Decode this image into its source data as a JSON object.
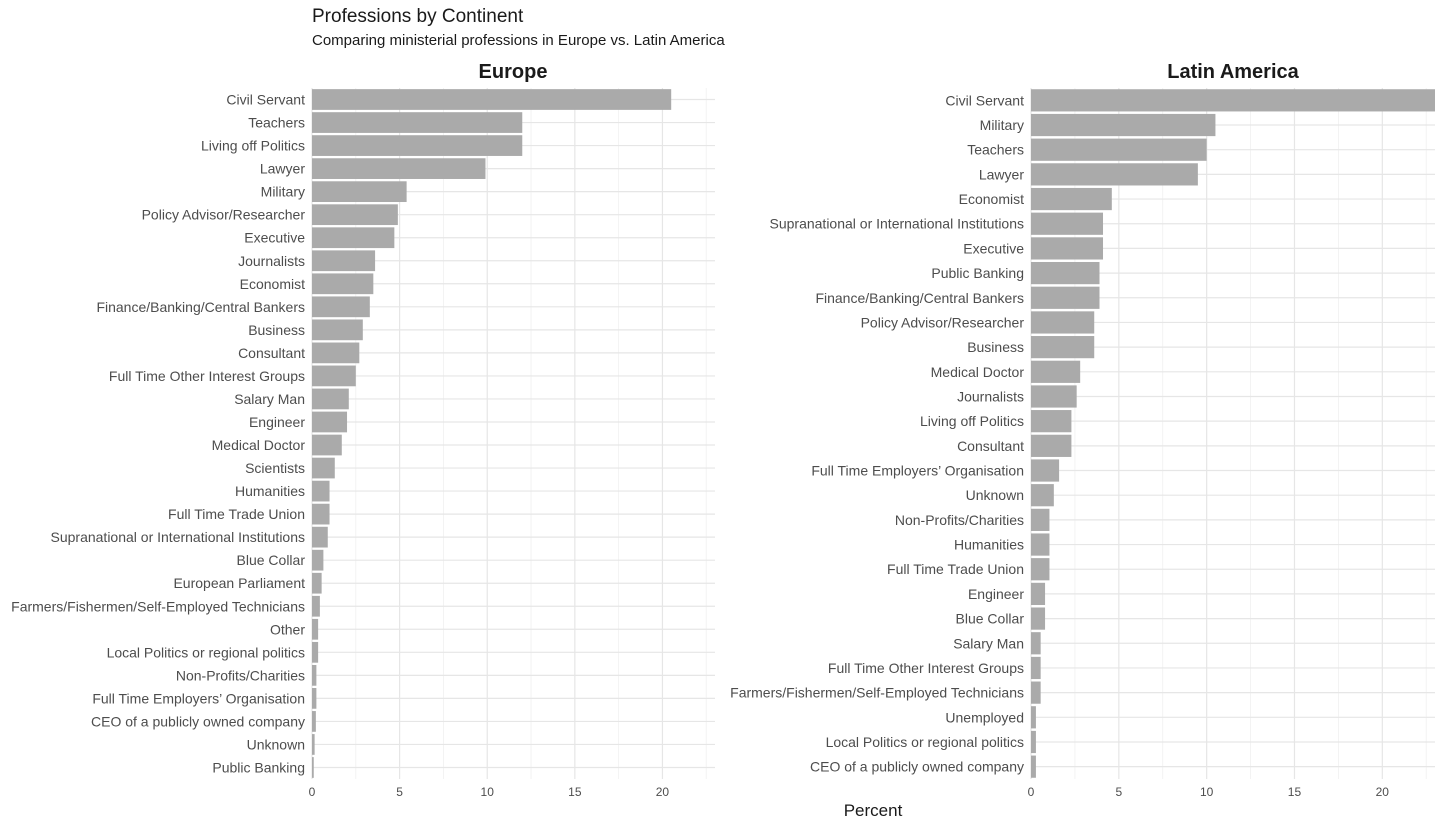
{
  "chart_data": {
    "type": "bar",
    "orientation": "horizontal",
    "title": "Professions by Continent",
    "subtitle": "Comparing ministerial professions in Europe vs. Latin America",
    "xlabel": "Percent",
    "ylabel": "",
    "xlim": [
      0,
      23
    ],
    "xticks": [
      0,
      5,
      10,
      15,
      20
    ],
    "grid": true,
    "bar_color": "#aaaaaa",
    "panels": [
      {
        "name": "Europe",
        "categories": [
          "Civil Servant",
          "Teachers",
          "Living off Politics",
          "Lawyer",
          "Military",
          "Policy Advisor/Researcher",
          "Executive",
          "Journalists",
          "Economist",
          "Finance/Banking/Central Bankers",
          "Business",
          "Consultant",
          "Full Time Other Interest Groups",
          "Salary Man",
          "Engineer",
          "Medical Doctor",
          "Scientists",
          "Humanities",
          "Full Time Trade Union",
          "Supranational or International Institutions",
          "Blue Collar",
          "European Parliament",
          "Farmers/Fishermen/Self-Employed Technicians",
          "Other",
          "Local Politics or regional politics",
          "Non-Profits/Charities",
          "Full Time Employers’ Organisation",
          "CEO of a publicly owned company",
          "Unknown",
          "Public Banking"
        ],
        "values": [
          20.5,
          12.0,
          12.0,
          9.9,
          5.4,
          4.9,
          4.7,
          3.6,
          3.5,
          3.3,
          2.9,
          2.7,
          2.5,
          2.1,
          2.0,
          1.7,
          1.3,
          1.0,
          1.0,
          0.9,
          0.65,
          0.55,
          0.45,
          0.35,
          0.35,
          0.25,
          0.25,
          0.22,
          0.15,
          0.1
        ]
      },
      {
        "name": "Latin America",
        "categories": [
          "Civil Servant",
          "Military",
          "Teachers",
          "Lawyer",
          "Economist",
          "Supranational or International Institutions",
          "Executive",
          "Public Banking",
          "Finance/Banking/Central Bankers",
          "Policy Advisor/Researcher",
          "Business",
          "Medical Doctor",
          "Journalists",
          "Living off Politics",
          "Consultant",
          "Full Time Employers’ Organisation",
          "Unknown",
          "Non-Profits/Charities",
          "Humanities",
          "Full Time Trade Union",
          "Engineer",
          "Blue Collar",
          "Salary Man",
          "Full Time Other Interest Groups",
          "Farmers/Fishermen/Self-Employed Technicians",
          "Unemployed",
          "Local Politics or regional politics",
          "CEO of a publicly owned company"
        ],
        "values": [
          23.0,
          10.5,
          10.0,
          9.5,
          4.6,
          4.1,
          4.1,
          3.9,
          3.9,
          3.6,
          3.6,
          2.8,
          2.6,
          2.3,
          2.3,
          1.6,
          1.3,
          1.05,
          1.05,
          1.05,
          0.8,
          0.8,
          0.55,
          0.55,
          0.55,
          0.28,
          0.28,
          0.28
        ]
      }
    ]
  }
}
